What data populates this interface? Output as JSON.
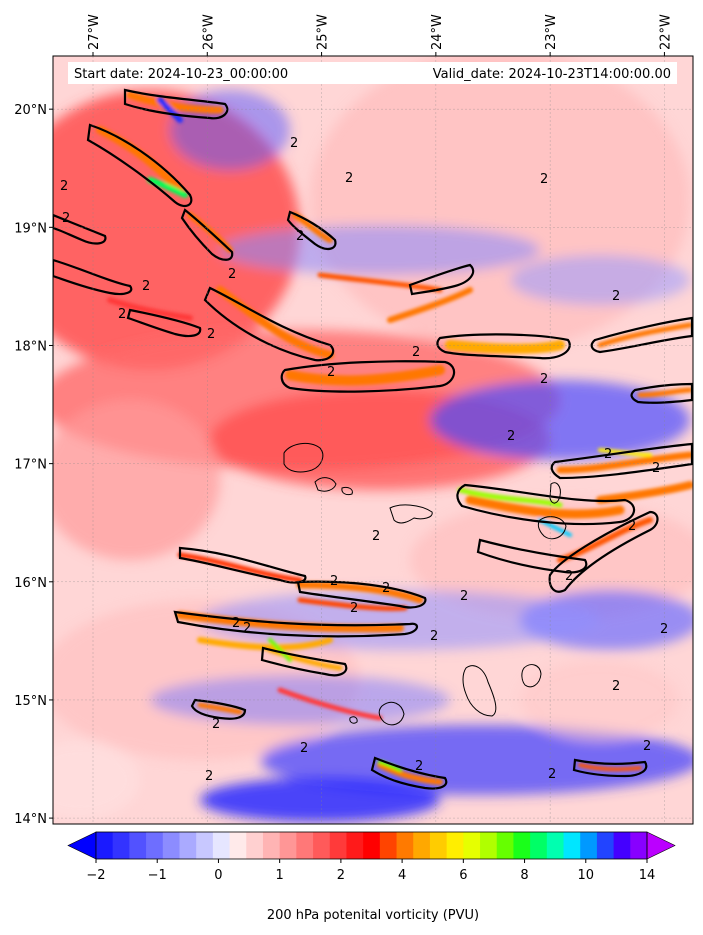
{
  "header": {
    "start_date": "Start date: 2024-10-23_00:00:00",
    "valid_date": "Valid_date: 2024-10-23T14:00:00.00"
  },
  "map": {
    "lon_range": [
      -27.35,
      -21.75
    ],
    "lat_range": [
      13.95,
      20.45
    ],
    "lon_ticks": [
      {
        "value": -27,
        "label": "27°W"
      },
      {
        "value": -26,
        "label": "26°W"
      },
      {
        "value": -25,
        "label": "25°W"
      },
      {
        "value": -24,
        "label": "24°W"
      },
      {
        "value": -23,
        "label": "23°W"
      },
      {
        "value": -22,
        "label": "22°W"
      }
    ],
    "lat_ticks": [
      {
        "value": 20,
        "label": "20°N"
      },
      {
        "value": 19,
        "label": "19°N"
      },
      {
        "value": 18,
        "label": "18°N"
      },
      {
        "value": 17,
        "label": "17°N"
      },
      {
        "value": 16,
        "label": "16°N"
      },
      {
        "value": 15,
        "label": "15°N"
      },
      {
        "value": 14,
        "label": "14°N"
      }
    ],
    "gridlines": true,
    "contour_label": "2"
  },
  "colorbar": {
    "title": "200 hPa potenital vorticity (PVU)",
    "tick_labels": [
      "−2",
      "−1",
      "0",
      "1",
      "2",
      "4",
      "6",
      "8",
      "10",
      "14"
    ],
    "colors": [
      "#1a1aff",
      "#3333ff",
      "#5252ff",
      "#6e6eff",
      "#8c8cff",
      "#aaaaff",
      "#c8c8ff",
      "#e6e6ff",
      "#ffeaea",
      "#ffd0d0",
      "#ffb4b4",
      "#ff9696",
      "#ff7878",
      "#ff5a5a",
      "#ff3a3a",
      "#ff1a1a",
      "#ff0000",
      "#ff4400",
      "#ff7a00",
      "#ffa800",
      "#ffcc00",
      "#ffee00",
      "#e6ff00",
      "#b0ff00",
      "#66ff00",
      "#1aff1a",
      "#00ff66",
      "#00ffb0",
      "#00e6ff",
      "#0099ff",
      "#2244ff",
      "#4400ff",
      "#8800ff"
    ],
    "extend_low_color": "#0000ff",
    "extend_high_color": "#bb00ff"
  }
}
